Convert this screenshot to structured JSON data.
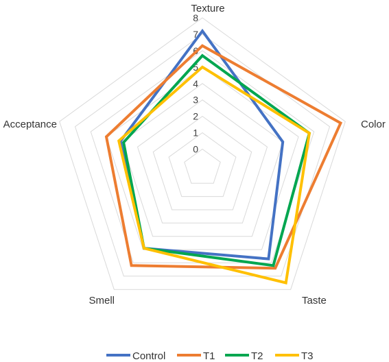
{
  "chart_data": {
    "type": "radar",
    "title": "",
    "axes": [
      "Texture",
      "Color",
      "Taste",
      "Smell",
      "Acceptance"
    ],
    "ticks": [
      "0",
      "1",
      "2",
      "3",
      "4",
      "5",
      "6",
      "7",
      "8"
    ],
    "rlim": [
      0,
      8
    ],
    "grid": true,
    "legend_position": "bottom",
    "series": [
      {
        "name": "Control",
        "color": "#4472C4",
        "values": [
          7.2,
          4.0,
          5.7,
          4.9,
          4.1
        ]
      },
      {
        "name": "T1",
        "color": "#ED7D31",
        "values": [
          6.3,
          7.7,
          6.4,
          6.2,
          5.0
        ]
      },
      {
        "name": "T2",
        "color": "#00A650",
        "values": [
          5.7,
          5.7,
          6.2,
          4.9,
          3.9
        ]
      },
      {
        "name": "T3",
        "color": "#FFC000",
        "values": [
          5.0,
          5.7,
          7.5,
          4.9,
          4.2
        ]
      }
    ]
  }
}
